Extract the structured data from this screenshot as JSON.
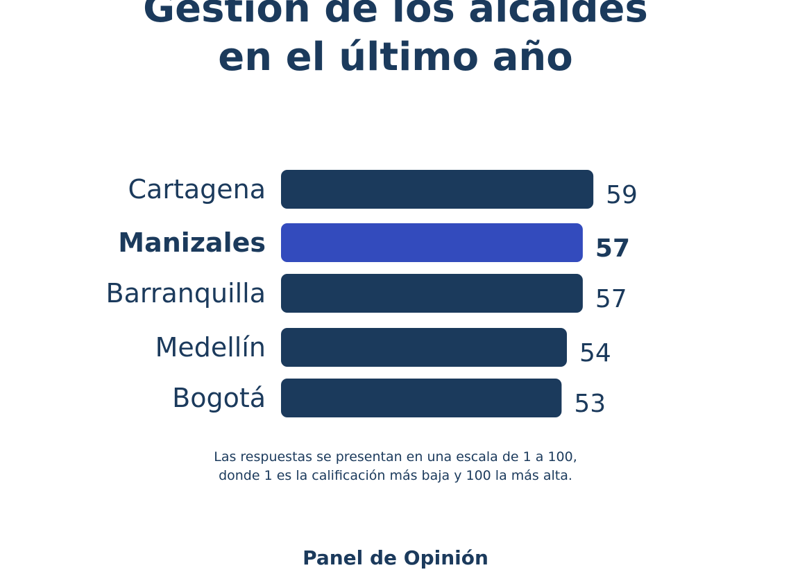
{
  "title": {
    "line1": "Gestión de los alcaldes",
    "line2": "en el último año"
  },
  "chart_data": {
    "type": "bar",
    "orientation": "horizontal",
    "categories": [
      "Cartagena",
      "Manizales",
      "Barranquilla",
      "Medellín",
      "Bogotá"
    ],
    "values": [
      59,
      57,
      57,
      54,
      53
    ],
    "highlighted": "Manizales",
    "xlim": [
      0,
      100
    ],
    "grid": false,
    "colors": {
      "bar": "#1b3a5c",
      "highlight": "#334bbd"
    }
  },
  "note": {
    "line1": "Las respuestas se presentan en una escala de 1 a 100,",
    "line2": "donde 1 es la calificación más baja y 100 la más alta."
  },
  "source": "Panel de Opinión"
}
